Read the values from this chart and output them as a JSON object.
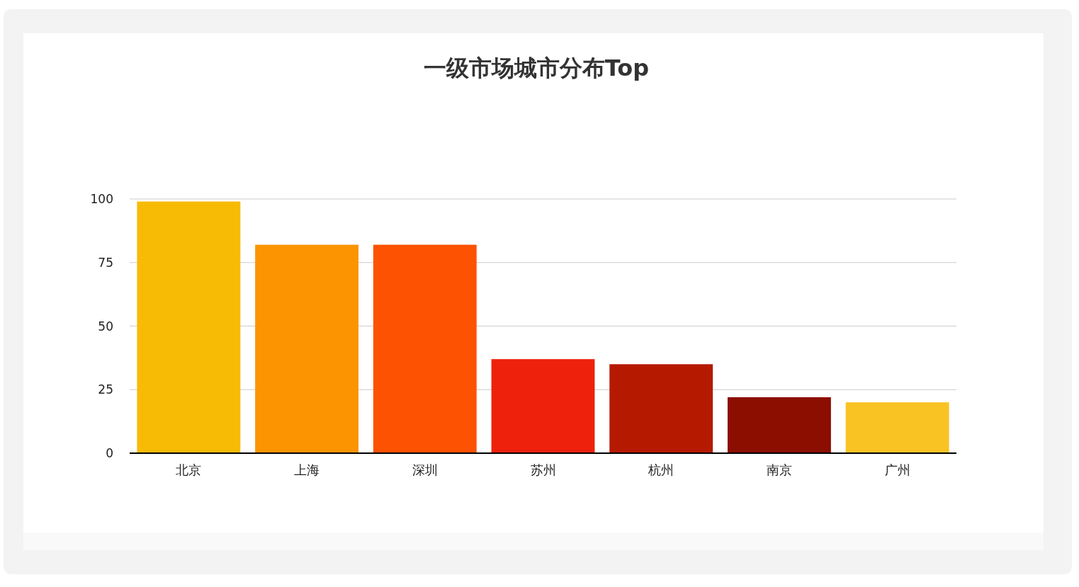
{
  "chart_data": {
    "type": "bar",
    "title": "一级市场城市分布Top",
    "categories": [
      "北京",
      "上海",
      "深圳",
      "苏州",
      "杭州",
      "南京",
      "广州"
    ],
    "values": [
      99,
      82,
      82,
      37,
      35,
      22,
      20
    ],
    "colors": [
      "#f7bb05",
      "#fc9402",
      "#fd5202",
      "#ee220c",
      "#b51a00",
      "#8b0e00",
      "#f8c323"
    ],
    "ylim": [
      0,
      100
    ],
    "yticks": [
      0,
      25,
      50,
      75,
      100
    ],
    "grid": "y"
  }
}
